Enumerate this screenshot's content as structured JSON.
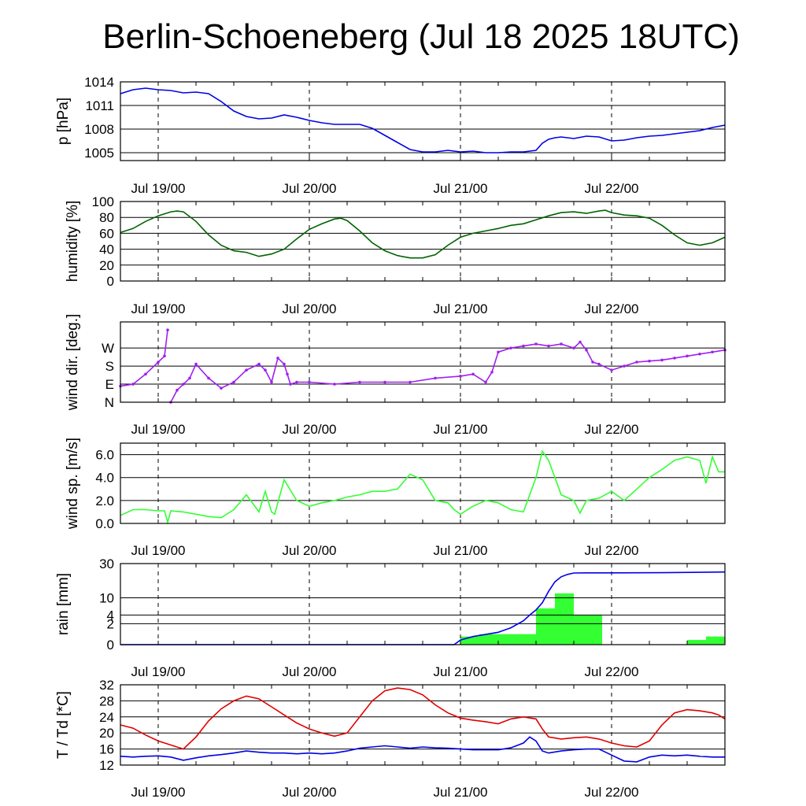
{
  "title": "Berlin-Schoeneberg (Jul 18 2025 18UTC)",
  "colors": {
    "pressure": "#0000e6",
    "humidity": "#006400",
    "wind_dir": "#a020f0",
    "wind_speed": "#33ff33",
    "rain_bar": "#33ff33",
    "rain_line": "#0000e6",
    "temperature": "#e00000",
    "dewpoint": "#0000e6",
    "grid": "#000000"
  },
  "chart_data": [
    {
      "type": "line",
      "ylabel": "p [hPa]",
      "ylim": [
        1004,
        1014
      ],
      "yticks": [
        1005,
        1008,
        1011,
        1014
      ],
      "ytick_labels": [
        "1005",
        "1008",
        "1011",
        "1014"
      ],
      "xlim": [
        -6,
        90
      ],
      "xtick_hours": [
        0,
        24,
        48,
        72
      ],
      "xtick_labels": [
        "Jul 19/00",
        "Jul 20/00",
        "Jul 21/00",
        "Jul 22/00"
      ],
      "series": [
        {
          "key": "pressure",
          "x": [
            -6,
            -4,
            -2,
            0,
            2,
            4,
            6,
            8,
            10,
            12,
            14,
            16,
            18,
            20,
            22,
            24,
            26,
            28,
            30,
            32,
            34,
            36,
            38,
            40,
            42,
            44,
            46,
            48,
            50,
            52,
            54,
            56,
            58,
            60,
            61,
            62,
            63,
            64,
            66,
            68,
            70,
            72,
            74,
            76,
            78,
            80,
            82,
            84,
            86,
            88,
            90
          ],
          "values": [
            1012.5,
            1013,
            1013.2,
            1013,
            1012.9,
            1012.6,
            1012.7,
            1012.5,
            1011.5,
            1010.3,
            1009.6,
            1009.3,
            1009.4,
            1009.8,
            1009.5,
            1009.1,
            1008.8,
            1008.6,
            1008.6,
            1008.6,
            1008.1,
            1007.2,
            1006.3,
            1005.4,
            1005.1,
            1005.1,
            1005.3,
            1005.1,
            1005.2,
            1005.0,
            1005.0,
            1005.1,
            1005.1,
            1005.3,
            1006.2,
            1006.7,
            1006.9,
            1007.0,
            1006.8,
            1007.1,
            1007.0,
            1006.5,
            1006.6,
            1006.9,
            1007.1,
            1007.2,
            1007.4,
            1007.6,
            1007.8,
            1008.2,
            1008.5
          ]
        }
      ]
    },
    {
      "type": "line",
      "ylabel": "humidity [%]",
      "ylim": [
        0,
        100
      ],
      "yticks": [
        0,
        20,
        40,
        60,
        80,
        100
      ],
      "ytick_labels": [
        "0",
        "20",
        "40",
        "60",
        "80",
        "100"
      ],
      "xlim": [
        -6,
        90
      ],
      "xtick_hours": [
        0,
        24,
        48,
        72
      ],
      "xtick_labels": [
        "Jul 19/00",
        "Jul 20/00",
        "Jul 21/00",
        "Jul 22/00"
      ],
      "series": [
        {
          "key": "humidity",
          "x": [
            -6,
            -4,
            -2,
            0,
            2,
            3,
            4,
            6,
            8,
            10,
            12,
            14,
            16,
            18,
            20,
            22,
            24,
            26,
            28,
            29,
            30,
            32,
            34,
            36,
            38,
            40,
            42,
            44,
            46,
            48,
            50,
            52,
            54,
            56,
            58,
            60,
            62,
            64,
            66,
            68,
            70,
            71,
            72,
            74,
            76,
            78,
            80,
            82,
            84,
            86,
            88,
            90
          ],
          "values": [
            61,
            66,
            75,
            82,
            87,
            88,
            87,
            75,
            58,
            45,
            38,
            36,
            31,
            34,
            40,
            53,
            65,
            72,
            78,
            79,
            76,
            63,
            48,
            38,
            32,
            29,
            29,
            33,
            45,
            55,
            60,
            63,
            66,
            70,
            72,
            77,
            82,
            86,
            87,
            85,
            88,
            89,
            86,
            83,
            82,
            79,
            70,
            58,
            48,
            45,
            48,
            55
          ]
        }
      ]
    },
    {
      "type": "scatter",
      "ylabel": "wind dir. [deg.]",
      "ylim": [
        0,
        400
      ],
      "yticks": [
        0,
        90,
        180,
        270
      ],
      "ytick_labels": [
        "N",
        "E",
        "S",
        "W"
      ],
      "xlim": [
        -6,
        90
      ],
      "xtick_hours": [
        0,
        24,
        48,
        72
      ],
      "xtick_labels": [
        "Jul 19/00",
        "Jul 20/00",
        "Jul 21/00",
        "Jul 22/00"
      ],
      "series": [
        {
          "key": "wind_dir",
          "x": [
            -6,
            -4,
            -2,
            0,
            1,
            1.5,
            2,
            3,
            4,
            5,
            6,
            8,
            10,
            12,
            14,
            16,
            17,
            18,
            19,
            20,
            20.5,
            21,
            22,
            24,
            28,
            32,
            36,
            40,
            44,
            48,
            50,
            52,
            53,
            54,
            56,
            58,
            60,
            62,
            64,
            66,
            67,
            68,
            69,
            70,
            72,
            74,
            76,
            78,
            80,
            82,
            84,
            86,
            88,
            90
          ],
          "values": [
            80,
            90,
            140,
            200,
            230,
            360,
            0,
            60,
            90,
            120,
            190,
            120,
            70,
            100,
            160,
            190,
            160,
            100,
            220,
            190,
            140,
            90,
            100,
            100,
            90,
            100,
            100,
            100,
            120,
            130,
            140,
            100,
            150,
            250,
            270,
            280,
            290,
            280,
            290,
            270,
            300,
            260,
            200,
            190,
            160,
            180,
            200,
            205,
            210,
            220,
            230,
            240,
            250,
            260
          ]
        }
      ]
    },
    {
      "type": "line",
      "ylabel": "wind sp. [m/s]",
      "ylim": [
        0,
        7
      ],
      "yticks": [
        0,
        2,
        4,
        6
      ],
      "ytick_labels": [
        "0.0",
        "2.0",
        "4.0",
        "6.0"
      ],
      "xlim": [
        -6,
        90
      ],
      "xtick_hours": [
        0,
        24,
        48,
        72
      ],
      "xtick_labels": [
        "Jul 19/00",
        "Jul 20/00",
        "Jul 21/00",
        "Jul 22/00"
      ],
      "series": [
        {
          "key": "wind_speed",
          "x": [
            -6,
            -4,
            -2,
            0,
            1,
            1.5,
            2,
            4,
            6,
            8,
            10,
            12,
            14,
            16,
            17,
            18,
            18.5,
            20,
            22,
            24,
            26,
            28,
            30,
            32,
            34,
            36,
            38,
            40,
            42,
            44,
            46,
            47,
            48,
            50,
            52,
            54,
            56,
            58,
            60,
            61,
            62,
            64,
            66,
            67,
            68,
            70,
            72,
            74,
            76,
            78,
            80,
            82,
            84,
            86,
            87,
            88,
            89,
            90
          ],
          "values": [
            0.7,
            1.2,
            1.2,
            1.1,
            1.1,
            0.1,
            1.1,
            1.0,
            0.8,
            0.6,
            0.5,
            1.2,
            2.5,
            1.0,
            2.8,
            1.0,
            0.8,
            3.8,
            2.0,
            1.5,
            1.8,
            2.0,
            2.3,
            2.5,
            2.8,
            2.8,
            3.0,
            4.3,
            3.8,
            2.0,
            1.8,
            1.2,
            0.8,
            1.5,
            2.0,
            1.8,
            1.2,
            1.0,
            4.0,
            6.3,
            5.5,
            2.5,
            2.0,
            0.9,
            2.0,
            2.2,
            2.8,
            2.0,
            3.0,
            4.0,
            4.7,
            5.5,
            5.8,
            5.5,
            3.5,
            5.8,
            4.5,
            4.5
          ]
        }
      ]
    },
    {
      "type": "bar",
      "ylabel": "rain [mm]",
      "ylim": [
        0,
        30
      ],
      "scale": "root",
      "yticks": [
        0,
        2,
        4,
        10,
        30
      ],
      "ytick_labels": [
        "0",
        "2",
        "4",
        "10",
        "30"
      ],
      "xlim": [
        -6,
        90
      ],
      "xtick_hours": [
        0,
        24,
        48,
        72
      ],
      "xtick_labels": [
        "Jul 19/00",
        "Jul 20/00",
        "Jul 21/00",
        "Jul 22/00"
      ],
      "bars": [
        {
          "x0": 48,
          "x1": 51,
          "value": 0.3
        },
        {
          "x0": 51,
          "x1": 54,
          "value": 0.5
        },
        {
          "x0": 54,
          "x1": 57,
          "value": 0.5
        },
        {
          "x0": 57,
          "x1": 60,
          "value": 0.5
        },
        {
          "x0": 60,
          "x1": 63,
          "value": 6
        },
        {
          "x0": 63,
          "x1": 66,
          "value": 12
        },
        {
          "x0": 66,
          "x1": 70.5,
          "value": 4
        },
        {
          "x0": 84,
          "x1": 87,
          "value": 0.1
        },
        {
          "x0": 87,
          "x1": 90,
          "value": 0.3
        }
      ],
      "series": [
        {
          "key": "rain_line",
          "x": [
            -6,
            47,
            48,
            50,
            54,
            56,
            58,
            59,
            60,
            61,
            62,
            63,
            64,
            65,
            66,
            68,
            72,
            80,
            90
          ],
          "values": [
            0,
            0,
            0.1,
            0.3,
            0.7,
            1.3,
            2.6,
            4,
            5.5,
            8,
            13,
            18,
            21,
            22.5,
            23.4,
            23.5,
            23.5,
            23.6,
            24.1
          ]
        }
      ]
    },
    {
      "type": "line",
      "ylabel": "T / Td [*C]",
      "ylim": [
        12,
        32
      ],
      "yticks": [
        12,
        16,
        20,
        24,
        28,
        32
      ],
      "ytick_labels": [
        "12",
        "16",
        "20",
        "24",
        "28",
        "32"
      ],
      "xlim": [
        -6,
        90
      ],
      "xtick_hours": [
        0,
        24,
        48,
        72
      ],
      "xtick_labels": [
        "Jul 19/00",
        "Jul 20/00",
        "Jul 21/00",
        "Jul 22/00"
      ],
      "series": [
        {
          "key": "temperature",
          "x": [
            -6,
            -4,
            -2,
            0,
            2,
            4,
            6,
            8,
            10,
            12,
            14,
            16,
            18,
            20,
            22,
            24,
            26,
            28,
            30,
            32,
            34,
            36,
            38,
            40,
            42,
            44,
            46,
            48,
            50,
            52,
            54,
            56,
            58,
            60,
            61,
            62,
            64,
            66,
            68,
            70,
            72,
            74,
            76,
            78,
            80,
            82,
            84,
            86,
            88,
            89,
            90
          ],
          "values": [
            22,
            21.2,
            19.5,
            18,
            17,
            16,
            19,
            23,
            26,
            28,
            29.2,
            28.5,
            26.5,
            24.5,
            22.5,
            21,
            20,
            19.2,
            20,
            24,
            28,
            30.5,
            31.2,
            30.8,
            29.5,
            27,
            25,
            23.7,
            23.2,
            22.8,
            22.3,
            23.5,
            24,
            23.5,
            21,
            19,
            18.5,
            18.8,
            19,
            18.5,
            17.5,
            16.8,
            16.5,
            18,
            22,
            25,
            25.8,
            25.5,
            25.0,
            24.5,
            23.5
          ]
        },
        {
          "key": "dewpoint",
          "x": [
            -6,
            -4,
            -2,
            0,
            2,
            4,
            6,
            8,
            10,
            12,
            14,
            16,
            18,
            20,
            22,
            24,
            26,
            28,
            30,
            32,
            34,
            36,
            38,
            40,
            42,
            44,
            46,
            48,
            50,
            52,
            54,
            56,
            58,
            59,
            60,
            61,
            62,
            64,
            66,
            68,
            70,
            72,
            74,
            76,
            78,
            80,
            82,
            84,
            86,
            88,
            90
          ],
          "values": [
            14.2,
            14.0,
            14.2,
            14.3,
            14.0,
            13.2,
            13.8,
            14.3,
            14.6,
            15.0,
            15.5,
            15.2,
            15.0,
            15.0,
            14.8,
            15.0,
            14.8,
            15.0,
            15.5,
            16.2,
            16.5,
            16.8,
            16.5,
            16.2,
            16.5,
            16.3,
            16.2,
            16.0,
            15.8,
            15.8,
            15.8,
            16.3,
            17.5,
            19.0,
            18.0,
            15.5,
            15.0,
            15.5,
            15.8,
            16.0,
            16.0,
            14.5,
            13.0,
            12.8,
            14.0,
            14.5,
            14.3,
            14.5,
            14.2,
            14.0,
            14.0
          ]
        }
      ]
    }
  ]
}
